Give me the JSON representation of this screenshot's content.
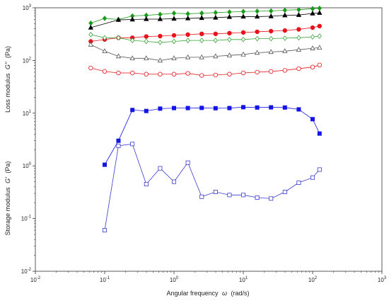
{
  "chart_data": {
    "type": "scatter",
    "x_scale": "log",
    "y_scale": "log",
    "xlim": [
      0.01,
      1000
    ],
    "ylim": [
      0.01,
      1000
    ],
    "xlabel_text": "Angular frequency",
    "xlabel_symbol": "ω",
    "xlabel_unit": "(rad/s)",
    "ylabel_top_text": "Loss modulus",
    "ylabel_top_symbol": "G''",
    "ylabel_top_unit": "(Pa)",
    "ylabel_bottom_text": "Storage modulus",
    "ylabel_bottom_symbol": "G'",
    "ylabel_bottom_unit": "(Pa)",
    "x_ticks": [
      {
        "value": 0.01,
        "mant": "10",
        "exp": "-2"
      },
      {
        "value": 0.1,
        "mant": "10",
        "exp": "-1"
      },
      {
        "value": 1,
        "mant": "10",
        "exp": "0"
      },
      {
        "value": 10,
        "mant": "10",
        "exp": "1"
      },
      {
        "value": 100,
        "mant": "10",
        "exp": "2"
      },
      {
        "value": 1000,
        "mant": "10",
        "exp": "3"
      }
    ],
    "y_ticks": [
      {
        "value": 0.01,
        "mant": "10",
        "exp": "-2"
      },
      {
        "value": 0.1,
        "mant": "10",
        "exp": "-1"
      },
      {
        "value": 1,
        "mant": "10",
        "exp": "0"
      },
      {
        "value": 10,
        "mant": "10",
        "exp": "1"
      },
      {
        "value": 100,
        "mant": "10",
        "exp": "2"
      },
      {
        "value": 1000,
        "mant": "10",
        "exp": "3"
      }
    ],
    "grid": false,
    "legend": "none",
    "series": [
      {
        "marker": "diamond",
        "filled": true,
        "color": "#1a9a1a",
        "x": [
          0.063,
          0.1,
          0.158,
          0.251,
          0.398,
          0.631,
          1,
          1.585,
          2.512,
          3.981,
          6.31,
          10,
          15.85,
          25.12,
          39.81,
          63.1,
          100,
          125.9
        ],
        "y": [
          510,
          630,
          600,
          700,
          720,
          750,
          790,
          770,
          790,
          810,
          830,
          850,
          860,
          870,
          900,
          920,
          960,
          980
        ]
      },
      {
        "marker": "triangle",
        "filled": true,
        "color": "#000000",
        "x": [
          0.063,
          0.158,
          0.251,
          0.398,
          0.631,
          1,
          1.585,
          2.512,
          3.981,
          6.31,
          10,
          15.85,
          25.12,
          39.81,
          63.1,
          100,
          125.9
        ],
        "y": [
          420,
          590,
          600,
          610,
          610,
          620,
          630,
          640,
          650,
          670,
          680,
          680,
          690,
          720,
          730,
          780,
          800
        ]
      },
      {
        "marker": "circle",
        "filled": true,
        "color": "#e8141b",
        "x": [
          0.063,
          0.1,
          0.158,
          0.251,
          0.398,
          0.631,
          1,
          1.585,
          2.512,
          3.981,
          6.31,
          10,
          15.85,
          25.12,
          39.81,
          63.1,
          100,
          125.9
        ],
        "y": [
          230,
          250,
          270,
          270,
          285,
          290,
          300,
          310,
          320,
          320,
          330,
          340,
          350,
          360,
          370,
          390,
          420,
          450
        ]
      },
      {
        "marker": "diamond",
        "filled": false,
        "color": "#3aa33a",
        "x": [
          0.063,
          0.1,
          0.158,
          0.251,
          0.398,
          0.631,
          1,
          1.585,
          2.512,
          3.981,
          6.31,
          10,
          15.85,
          25.12,
          39.81,
          63.1,
          100,
          125.9
        ],
        "y": [
          310,
          270,
          270,
          240,
          230,
          220,
          230,
          240,
          240,
          240,
          250,
          250,
          260,
          260,
          265,
          270,
          280,
          290
        ]
      },
      {
        "marker": "triangle",
        "filled": false,
        "color": "#555555",
        "x": [
          0.063,
          0.1,
          0.158,
          0.251,
          0.398,
          0.631,
          1,
          1.585,
          2.512,
          3.981,
          6.31,
          10,
          15.85,
          25.12,
          39.81,
          63.1,
          100,
          125.9
        ],
        "y": [
          200,
          150,
          120,
          110,
          110,
          100,
          110,
          115,
          115,
          120,
          125,
          130,
          140,
          145,
          150,
          160,
          170,
          175
        ]
      },
      {
        "marker": "circle",
        "filled": false,
        "color": "#e8141b",
        "x": [
          0.063,
          0.1,
          0.158,
          0.251,
          0.398,
          0.631,
          1,
          1.585,
          2.512,
          3.981,
          6.31,
          10,
          15.85,
          25.12,
          39.81,
          63.1,
          100,
          125.9
        ],
        "y": [
          72,
          62,
          58,
          58,
          55,
          55,
          55,
          57,
          52,
          53,
          55,
          58,
          60,
          62,
          65,
          70,
          75,
          82
        ]
      },
      {
        "marker": "square",
        "filled": true,
        "color": "#1414e6",
        "x": [
          0.1,
          0.158,
          0.251,
          0.398,
          0.631,
          1,
          1.585,
          2.512,
          3.981,
          6.31,
          10,
          15.85,
          25.12,
          39.81,
          63.1,
          100,
          125.9
        ],
        "y": [
          1.05,
          3.0,
          11.5,
          11.0,
          12.2,
          12.5,
          12.5,
          12.6,
          12.4,
          12.5,
          13.0,
          12.8,
          12.9,
          12.8,
          11.8,
          7.7,
          4.1
        ]
      },
      {
        "marker": "square",
        "filled": false,
        "color": "#3a3ad0",
        "x": [
          0.1,
          0.158,
          0.251,
          0.398,
          0.631,
          1,
          1.585,
          2.512,
          3.981,
          6.31,
          10,
          15.85,
          25.12,
          39.81,
          63.1,
          100,
          125.9
        ],
        "y": [
          0.06,
          2.4,
          2.6,
          0.45,
          0.9,
          0.5,
          1.15,
          0.26,
          0.32,
          0.28,
          0.28,
          0.25,
          0.24,
          0.32,
          0.48,
          0.6,
          0.85
        ]
      }
    ]
  }
}
